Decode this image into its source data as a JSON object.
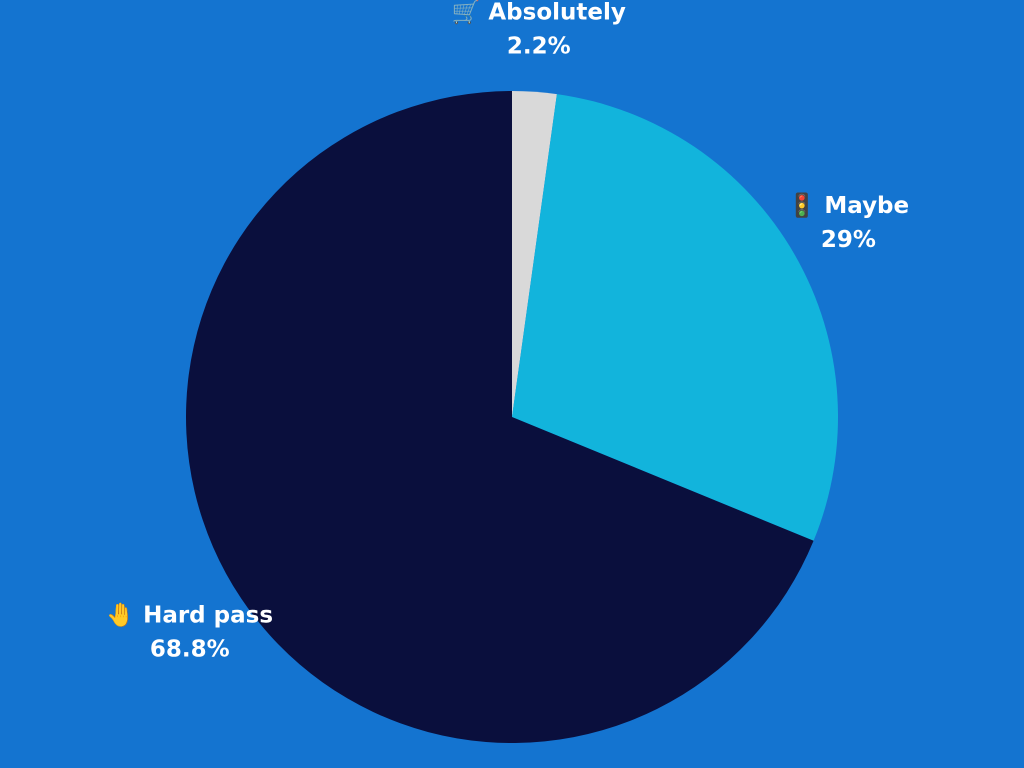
{
  "chart_data": {
    "type": "pie",
    "categories": [
      "🛒 Absolutely",
      "🚦 Maybe",
      "🤚 Hard pass"
    ],
    "values": [
      2.2,
      29,
      68.8
    ],
    "value_labels": [
      "2.2%",
      "29%",
      "68.8%"
    ],
    "colors": [
      "#d9d9d9",
      "#12b4dc",
      "#0a0f3d"
    ]
  }
}
